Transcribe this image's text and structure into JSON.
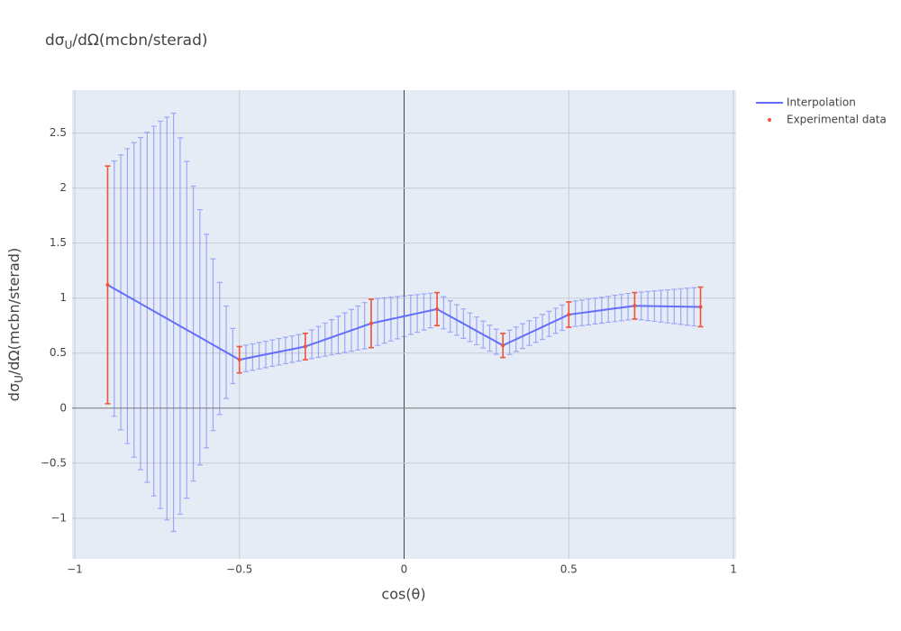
{
  "chart_data": {
    "type": "line",
    "title": [
      "dσ",
      "U",
      "/dΩ(mcbn/sterad)"
    ],
    "x_label": "cos(θ)",
    "y_label": [
      "dσ",
      "U",
      "/dΩ(mcbn/sterad)"
    ],
    "xlim": [
      -1.008,
      1.008
    ],
    "ylim": [
      -1.37,
      2.89
    ],
    "xticks": [
      {
        "value": -1,
        "label": "−1"
      },
      {
        "value": -0.5,
        "label": "−0.5"
      },
      0,
      0.5,
      1
    ],
    "yticks": [
      {
        "value": -1,
        "label": "−1"
      },
      {
        "value": -0.5,
        "label": "−0.5"
      },
      0,
      0.5,
      1,
      1.5,
      2,
      2.5
    ],
    "grid": true,
    "legend": "top-right",
    "series": [
      {
        "name": "Interpolation",
        "mode": "lines",
        "color": "#636efa",
        "x": [
          -0.9,
          -0.88,
          -0.86,
          -0.84,
          -0.82,
          -0.8,
          -0.78,
          -0.76,
          -0.74,
          -0.72,
          -0.7,
          -0.68,
          -0.66,
          -0.64,
          -0.62,
          -0.6,
          -0.58,
          -0.56,
          -0.54,
          -0.52,
          -0.5,
          -0.48,
          -0.46,
          -0.44,
          -0.42,
          -0.4,
          -0.38,
          -0.36,
          -0.34,
          -0.32,
          -0.3,
          -0.28,
          -0.26,
          -0.24,
          -0.22,
          -0.2,
          -0.18,
          -0.16,
          -0.14,
          -0.12,
          -0.1,
          -0.08,
          -0.06,
          -0.04,
          -0.02,
          0,
          0.02,
          0.04,
          0.06,
          0.08,
          0.1,
          0.12,
          0.14,
          0.16,
          0.18,
          0.2,
          0.22,
          0.24,
          0.26,
          0.28,
          0.3,
          0.32,
          0.34,
          0.36,
          0.38,
          0.4,
          0.42,
          0.44,
          0.46,
          0.48,
          0.5,
          0.52,
          0.54,
          0.56,
          0.58,
          0.6,
          0.62,
          0.64,
          0.66,
          0.68,
          0.7,
          0.72,
          0.74,
          0.76,
          0.78,
          0.8,
          0.82,
          0.84,
          0.86,
          0.88,
          0.9
        ],
        "values": [
          1.12,
          1.086,
          1.052,
          1.018,
          0.984,
          0.95,
          0.916,
          0.882,
          0.848,
          0.814,
          0.78,
          0.746,
          0.712,
          0.678,
          0.644,
          0.61,
          0.576,
          0.542,
          0.508,
          0.474,
          0.44,
          0.452,
          0.464,
          0.476,
          0.488,
          0.5,
          0.512,
          0.524,
          0.536,
          0.548,
          0.56,
          0.581,
          0.602,
          0.623,
          0.644,
          0.665,
          0.686,
          0.707,
          0.728,
          0.749,
          0.77,
          0.783,
          0.796,
          0.809,
          0.822,
          0.835,
          0.848,
          0.861,
          0.874,
          0.887,
          0.9,
          0.867,
          0.834,
          0.801,
          0.768,
          0.735,
          0.702,
          0.669,
          0.636,
          0.603,
          0.57,
          0.598,
          0.626,
          0.654,
          0.682,
          0.71,
          0.738,
          0.766,
          0.794,
          0.822,
          0.85,
          0.858,
          0.866,
          0.874,
          0.882,
          0.89,
          0.898,
          0.906,
          0.914,
          0.922,
          0.93,
          0.929,
          0.928,
          0.927,
          0.926,
          0.925,
          0.924,
          0.923,
          0.922,
          0.921,
          0.92
        ],
        "errors": [
          1.08,
          1.16,
          1.25,
          1.34,
          1.43,
          1.51,
          1.59,
          1.68,
          1.76,
          1.83,
          1.9,
          1.71,
          1.53,
          1.34,
          1.16,
          0.97,
          0.78,
          0.6,
          0.42,
          0.25,
          0.12,
          0.12,
          0.12,
          0.12,
          0.12,
          0.12,
          0.12,
          0.12,
          0.12,
          0.12,
          0.12,
          0.13,
          0.14,
          0.15,
          0.16,
          0.17,
          0.18,
          0.19,
          0.2,
          0.21,
          0.22,
          0.213,
          0.206,
          0.199,
          0.192,
          0.185,
          0.178,
          0.171,
          0.164,
          0.157,
          0.15,
          0.146,
          0.142,
          0.138,
          0.134,
          0.13,
          0.126,
          0.122,
          0.118,
          0.114,
          0.11,
          0.111,
          0.111,
          0.112,
          0.112,
          0.113,
          0.113,
          0.114,
          0.114,
          0.115,
          0.115,
          0.116,
          0.116,
          0.117,
          0.117,
          0.118,
          0.118,
          0.119,
          0.119,
          0.12,
          0.12,
          0.126,
          0.132,
          0.138,
          0.144,
          0.15,
          0.156,
          0.162,
          0.168,
          0.174,
          0.18
        ]
      },
      {
        "name": "Experimental data",
        "mode": "markers",
        "color": "#ef553b",
        "x": [
          -0.9,
          -0.5,
          -0.3,
          -0.1,
          0.1,
          0.3,
          0.5,
          0.7,
          0.9
        ],
        "values": [
          1.12,
          0.44,
          0.56,
          0.77,
          0.9,
          0.57,
          0.85,
          0.93,
          0.92
        ],
        "errors": [
          1.08,
          0.12,
          0.12,
          0.22,
          0.15,
          0.11,
          0.115,
          0.12,
          0.18
        ]
      }
    ]
  }
}
